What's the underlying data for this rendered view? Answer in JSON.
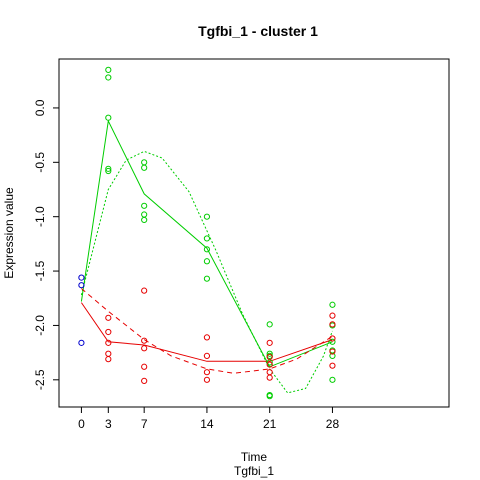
{
  "chart_data": {
    "type": "scatter",
    "title": "Tgfbi_1 - cluster 1",
    "xlabel": "Time",
    "sublabel": "Tgfbi_1",
    "ylabel": "Expression value",
    "xlim": [
      -2.5,
      41
    ],
    "ylim": [
      -2.75,
      0.45
    ],
    "x_ticks": [
      0,
      3,
      7,
      14,
      21,
      28
    ],
    "y_ticks": [
      0.0,
      -0.5,
      -1.0,
      -1.5,
      -2.0,
      -2.5
    ],
    "y_tick_labels": [
      "0.0",
      "-0.5",
      "-1.0",
      "-1.5",
      "-2.0",
      "-2.5"
    ],
    "grid": false,
    "colors": {
      "green": "#00cd00",
      "red": "#e60000",
      "blue": "#0000cd"
    },
    "baseline_points": {
      "color": "blue",
      "points": [
        [
          0,
          -1.56
        ],
        [
          0,
          -1.63
        ],
        [
          0,
          -2.16
        ]
      ]
    },
    "series": [
      {
        "color": "green",
        "points": [
          [
            3,
            0.35
          ],
          [
            3,
            0.28
          ],
          [
            3,
            -0.09
          ],
          [
            3,
            -0.56
          ],
          [
            3,
            -0.58
          ],
          [
            7,
            -0.5
          ],
          [
            7,
            -0.55
          ],
          [
            7,
            -0.9
          ],
          [
            7,
            -0.98
          ],
          [
            7,
            -1.03
          ],
          [
            14,
            -1.0
          ],
          [
            14,
            -1.2
          ],
          [
            14,
            -1.3
          ],
          [
            14,
            -1.41
          ],
          [
            14,
            -1.57
          ],
          [
            21,
            -1.99
          ],
          [
            21,
            -2.26
          ],
          [
            21,
            -2.28
          ],
          [
            21,
            -2.34
          ],
          [
            21,
            -2.64
          ],
          [
            21,
            -2.65
          ],
          [
            28,
            -1.81
          ],
          [
            28,
            -2.0
          ],
          [
            28,
            -2.15
          ],
          [
            28,
            -2.23
          ],
          [
            28,
            -2.28
          ],
          [
            28,
            -2.5
          ]
        ],
        "mean_line": [
          [
            0,
            -1.78
          ],
          [
            3,
            -0.12
          ],
          [
            7,
            -0.79
          ],
          [
            14,
            -1.29
          ],
          [
            21,
            -2.38
          ],
          [
            28,
            -2.15
          ]
        ],
        "fit_curve": [
          [
            0,
            -1.72
          ],
          [
            3,
            -0.75
          ],
          [
            5,
            -0.48
          ],
          [
            7,
            -0.4
          ],
          [
            9,
            -0.46
          ],
          [
            12,
            -0.77
          ],
          [
            15,
            -1.31
          ],
          [
            18,
            -1.9
          ],
          [
            21,
            -2.4
          ],
          [
            23,
            -2.62
          ],
          [
            25,
            -2.58
          ],
          [
            27,
            -2.28
          ],
          [
            28,
            -2.05
          ]
        ]
      },
      {
        "color": "red",
        "points": [
          [
            3,
            -1.93
          ],
          [
            3,
            -2.06
          ],
          [
            3,
            -2.16
          ],
          [
            3,
            -2.26
          ],
          [
            3,
            -2.31
          ],
          [
            7,
            -1.68
          ],
          [
            7,
            -2.14
          ],
          [
            7,
            -2.21
          ],
          [
            7,
            -2.38
          ],
          [
            7,
            -2.51
          ],
          [
            14,
            -2.11
          ],
          [
            14,
            -2.28
          ],
          [
            14,
            -2.43
          ],
          [
            14,
            -2.5
          ],
          [
            21,
            -2.16
          ],
          [
            21,
            -2.29
          ],
          [
            21,
            -2.36
          ],
          [
            21,
            -2.43
          ],
          [
            21,
            -2.48
          ],
          [
            28,
            -1.91
          ],
          [
            28,
            -1.99
          ],
          [
            28,
            -2.12
          ],
          [
            28,
            -2.24
          ],
          [
            28,
            -2.37
          ]
        ],
        "mean_line": [
          [
            0,
            -1.79
          ],
          [
            3,
            -2.15
          ],
          [
            7,
            -2.18
          ],
          [
            14,
            -2.33
          ],
          [
            21,
            -2.33
          ],
          [
            28,
            -2.13
          ]
        ],
        "fit_curve": [
          [
            0,
            -1.66
          ],
          [
            3,
            -1.87
          ],
          [
            7,
            -2.13
          ],
          [
            10,
            -2.28
          ],
          [
            14,
            -2.4
          ],
          [
            17,
            -2.44
          ],
          [
            21,
            -2.4
          ],
          [
            24,
            -2.31
          ],
          [
            28,
            -2.1
          ]
        ]
      }
    ]
  }
}
